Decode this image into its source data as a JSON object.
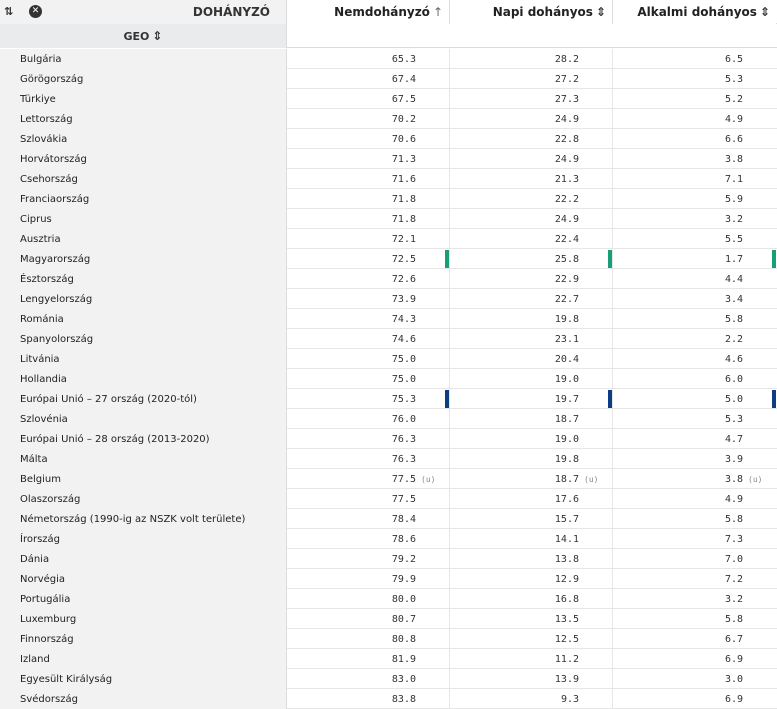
{
  "header": {
    "sort_toggle": "⇅",
    "close_glyph": "✕",
    "dimension_label": "DOHÁNYZÓ",
    "columns": [
      {
        "label": "Nemdohányzó",
        "sort_glyph": "↑"
      },
      {
        "label": "Napi dohányos",
        "sort_glyph": "⇕"
      },
      {
        "label": "Alkalmi dohányos",
        "sort_glyph": "⇕"
      }
    ],
    "geo_label": "GEO",
    "geo_sort_glyph": "⇕"
  },
  "colors": {
    "highlight_green": "#1a9e7a",
    "highlight_blue": "#0d3d85"
  },
  "rows": [
    {
      "geo": "Bulgária",
      "values": [
        "65.3",
        "28.2",
        "6.5"
      ]
    },
    {
      "geo": "Görögország",
      "values": [
        "67.4",
        "27.2",
        "5.3"
      ]
    },
    {
      "geo": "Türkiye",
      "values": [
        "67.5",
        "27.3",
        "5.2"
      ]
    },
    {
      "geo": "Lettország",
      "values": [
        "70.2",
        "24.9",
        "4.9"
      ]
    },
    {
      "geo": "Szlovákia",
      "values": [
        "70.6",
        "22.8",
        "6.6"
      ]
    },
    {
      "geo": "Horvátország",
      "values": [
        "71.3",
        "24.9",
        "3.8"
      ]
    },
    {
      "geo": "Csehország",
      "values": [
        "71.6",
        "21.3",
        "7.1"
      ]
    },
    {
      "geo": "Franciaország",
      "values": [
        "71.8",
        "22.2",
        "5.9"
      ]
    },
    {
      "geo": "Ciprus",
      "values": [
        "71.8",
        "24.9",
        "3.2"
      ]
    },
    {
      "geo": "Ausztria",
      "values": [
        "72.1",
        "22.4",
        "5.5"
      ]
    },
    {
      "geo": "Magyarország",
      "values": [
        "72.5",
        "25.8",
        "1.7"
      ],
      "highlight": "green"
    },
    {
      "geo": "Észtország",
      "values": [
        "72.6",
        "22.9",
        "4.4"
      ]
    },
    {
      "geo": "Lengyelország",
      "values": [
        "73.9",
        "22.7",
        "3.4"
      ]
    },
    {
      "geo": "Románia",
      "values": [
        "74.3",
        "19.8",
        "5.8"
      ]
    },
    {
      "geo": "Spanyolország",
      "values": [
        "74.6",
        "23.1",
        "2.2"
      ]
    },
    {
      "geo": "Litvánia",
      "values": [
        "75.0",
        "20.4",
        "4.6"
      ]
    },
    {
      "geo": "Hollandia",
      "values": [
        "75.0",
        "19.0",
        "6.0"
      ]
    },
    {
      "geo": "Európai Unió – 27 ország (2020-tól)",
      "values": [
        "75.3",
        "19.7",
        "5.0"
      ],
      "highlight": "blue"
    },
    {
      "geo": "Szlovénia",
      "values": [
        "76.0",
        "18.7",
        "5.3"
      ]
    },
    {
      "geo": "Európai Unió – 28 ország (2013-2020)",
      "values": [
        "76.3",
        "19.0",
        "4.7"
      ]
    },
    {
      "geo": "Málta",
      "values": [
        "76.3",
        "19.8",
        "3.9"
      ]
    },
    {
      "geo": "Belgium",
      "values": [
        "77.5",
        "18.7",
        "3.8"
      ],
      "flags": [
        "(u)",
        "(u)",
        "(u)"
      ]
    },
    {
      "geo": "Olaszország",
      "values": [
        "77.5",
        "17.6",
        "4.9"
      ]
    },
    {
      "geo": "Németország (1990-ig az NSZK volt területe)",
      "values": [
        "78.4",
        "15.7",
        "5.8"
      ]
    },
    {
      "geo": "Írország",
      "values": [
        "78.6",
        "14.1",
        "7.3"
      ]
    },
    {
      "geo": "Dánia",
      "values": [
        "79.2",
        "13.8",
        "7.0"
      ]
    },
    {
      "geo": "Norvégia",
      "values": [
        "79.9",
        "12.9",
        "7.2"
      ]
    },
    {
      "geo": "Portugália",
      "values": [
        "80.0",
        "16.8",
        "3.2"
      ]
    },
    {
      "geo": "Luxemburg",
      "values": [
        "80.7",
        "13.5",
        "5.8"
      ]
    },
    {
      "geo": "Finnország",
      "values": [
        "80.8",
        "12.5",
        "6.7"
      ]
    },
    {
      "geo": "Izland",
      "values": [
        "81.9",
        "11.2",
        "6.9"
      ]
    },
    {
      "geo": "Egyesült Királyság",
      "values": [
        "83.0",
        "13.9",
        "3.0"
      ]
    },
    {
      "geo": "Svédország",
      "values": [
        "83.8",
        "9.3",
        "6.9"
      ]
    }
  ]
}
